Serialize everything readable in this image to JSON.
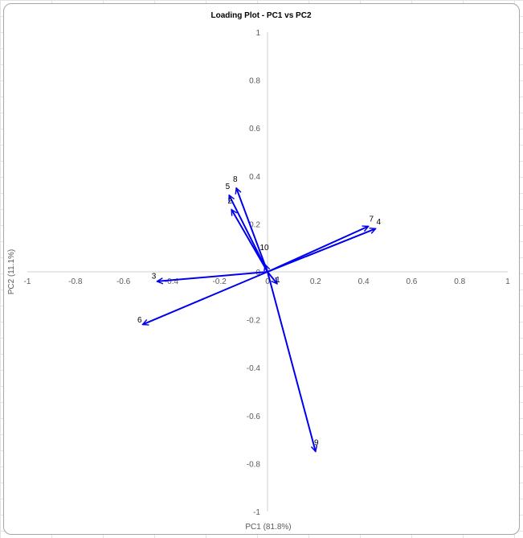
{
  "chart_data": {
    "type": "scatter",
    "title": "Loading Plot - PC1 vs PC2",
    "xlabel": "PC1 (81.8%)",
    "ylabel": "PC2 (11.1%)",
    "xlim": [
      -1,
      1
    ],
    "ylim": [
      -1,
      1
    ],
    "xticks": [
      "-1",
      "-0.8",
      "-0.6",
      "-0.4",
      "-0.2",
      "0",
      "0.2",
      "0.4",
      "0.6",
      "0.8",
      "1"
    ],
    "yticks": [
      "1",
      "0.8",
      "0.6",
      "0.4",
      "0.2",
      "0",
      "-0.2",
      "-0.4",
      "-0.6",
      "-0.8",
      "-1"
    ],
    "grid": false,
    "arrow_color": "#0000ee",
    "vectors": [
      {
        "label": "1",
        "x": 0.04,
        "y": -0.05
      },
      {
        "label": "2",
        "x": -0.15,
        "y": 0.26
      },
      {
        "label": "3",
        "x": -0.46,
        "y": -0.04
      },
      {
        "label": "4",
        "x": 0.45,
        "y": 0.18
      },
      {
        "label": "5",
        "x": -0.16,
        "y": 0.32
      },
      {
        "label": "6",
        "x": -0.52,
        "y": -0.22
      },
      {
        "label": "7",
        "x": 0.42,
        "y": 0.19
      },
      {
        "label": "8",
        "x": -0.13,
        "y": 0.35
      },
      {
        "label": "9",
        "x": 0.2,
        "y": -0.75
      },
      {
        "label": "10",
        "x": -0.01,
        "y": 0.03
      }
    ]
  }
}
